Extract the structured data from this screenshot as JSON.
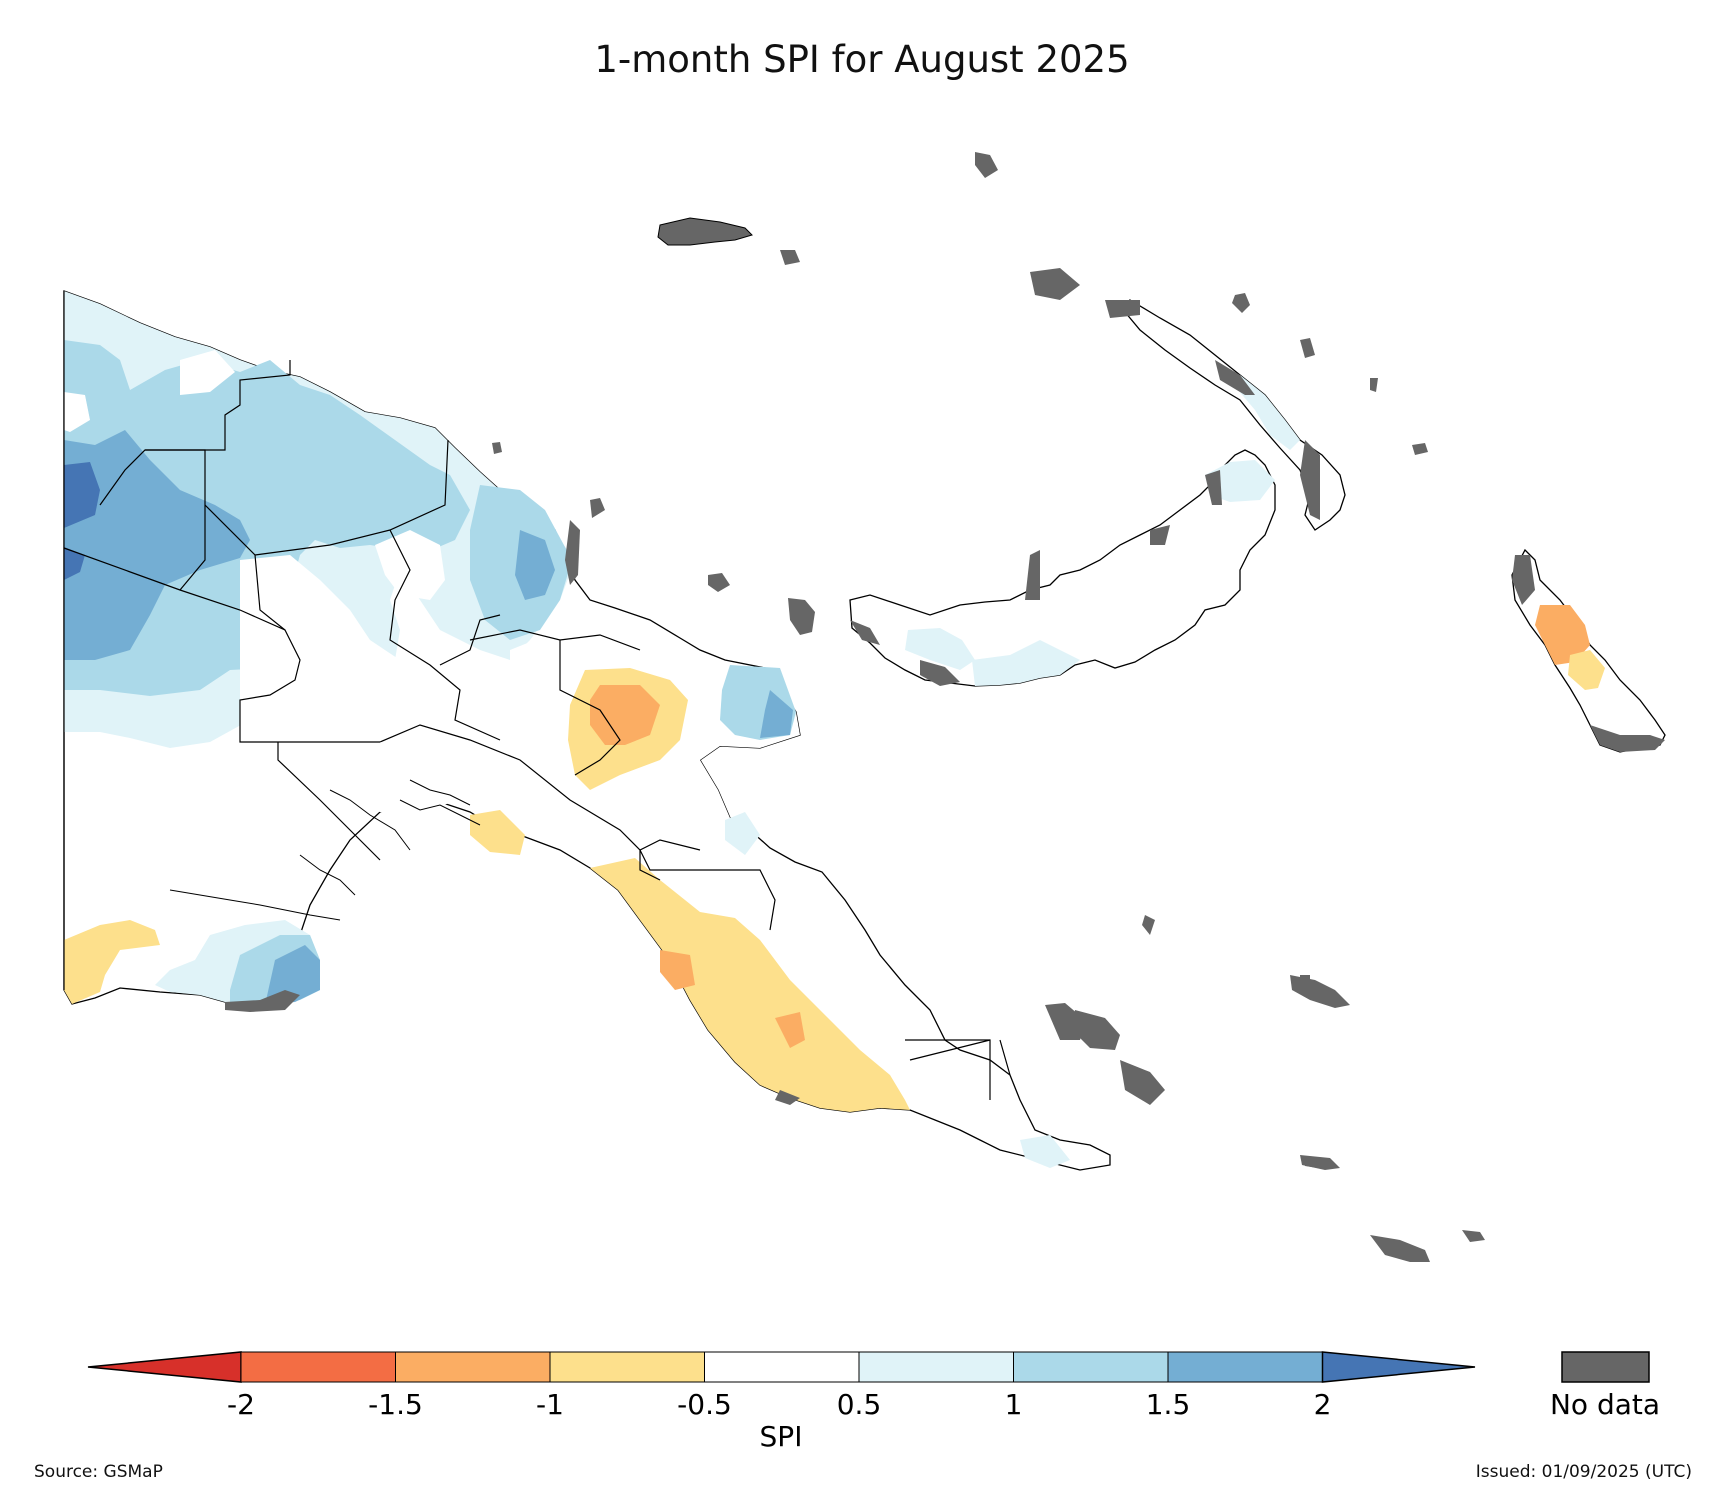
{
  "title": "1-month SPI for August 2025",
  "colorbar": {
    "label": "SPI",
    "ticks": [
      "-2",
      "-1.5",
      "-1",
      "-0.5",
      "0.5",
      "1",
      "1.5",
      "2"
    ],
    "bins": [
      {
        "range": "< -2",
        "color": "#d7302a"
      },
      {
        "range": "-2 to -1.5",
        "color": "#f36d44"
      },
      {
        "range": "-1.5 to -1",
        "color": "#fbad63"
      },
      {
        "range": "-1 to -0.5",
        "color": "#fde08c"
      },
      {
        "range": "-0.5 to 0.5",
        "color": "#ffffff"
      },
      {
        "range": "0.5 to 1",
        "color": "#e0f3f8"
      },
      {
        "range": "1 to 1.5",
        "color": "#abd9e9"
      },
      {
        "range": "1.5 to 2",
        "color": "#74aed3"
      },
      {
        "range": "> 2",
        "color": "#4575b4"
      }
    ]
  },
  "no_data": {
    "label": "No data",
    "color": "#666666"
  },
  "source": "Source: GSMaP",
  "issued": "Issued: 01/09/2025 (UTC)"
}
